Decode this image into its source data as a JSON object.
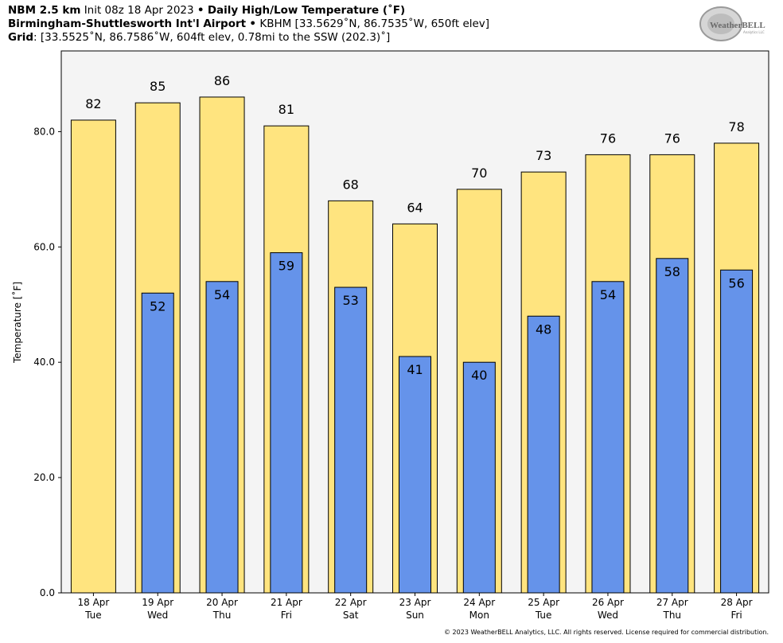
{
  "header": {
    "line1_bold": "NBM 2.5 km",
    "line1_init": "Init 08z 18 Apr 2023",
    "line1_sep": "•",
    "line1_title": "Daily High/Low Temperature (˚F)",
    "line2_bold": "Birmingham-Shuttlesworth Int'l Airport",
    "line2_sep": "•",
    "line2_rest": "KBHM [33.5629˚N, 86.7535˚W, 650ft elev]",
    "line3_bold": "Grid",
    "line3_rest": ": [33.5525˚N, 86.7586˚W, 604ft elev, 0.78mi to the SSW (202.3)˚]"
  },
  "logo": {
    "text_main": "WeatherBELL",
    "text_sub": "Analytics LLC"
  },
  "copyright": "© 2023 WeatherBELL Analytics, LLC. All rights reserved. License required for commercial distribution.",
  "chart_data": {
    "type": "bar",
    "categories": [
      {
        "date": "18 Apr",
        "day": "Tue"
      },
      {
        "date": "19 Apr",
        "day": "Wed"
      },
      {
        "date": "20 Apr",
        "day": "Thu"
      },
      {
        "date": "21 Apr",
        "day": "Fri"
      },
      {
        "date": "22 Apr",
        "day": "Sat"
      },
      {
        "date": "23 Apr",
        "day": "Sun"
      },
      {
        "date": "24 Apr",
        "day": "Mon"
      },
      {
        "date": "25 Apr",
        "day": "Tue"
      },
      {
        "date": "26 Apr",
        "day": "Wed"
      },
      {
        "date": "27 Apr",
        "day": "Thu"
      },
      {
        "date": "28 Apr",
        "day": "Fri"
      }
    ],
    "series": [
      {
        "values": [
          82,
          85,
          86,
          81,
          68,
          64,
          70,
          73,
          76,
          76,
          78
        ],
        "color": "#ffe47f"
      },
      {
        "values": [
          null,
          52,
          54,
          59,
          53,
          41,
          40,
          48,
          54,
          58,
          56
        ],
        "color": "#6593ea"
      }
    ],
    "high_labels": [
      "82",
      "85",
      "86",
      "81",
      "68",
      "64",
      "70",
      "73",
      "76",
      "76",
      "78"
    ],
    "low_labels": [
      "",
      "52",
      "54",
      "59",
      "53",
      "41",
      "40",
      "48",
      "54",
      "58",
      "56"
    ],
    "ylabel": "Temperature [˚F]",
    "ylim": [
      0,
      94
    ],
    "yticks": [
      0,
      20,
      40,
      60,
      80
    ],
    "ytick_labels": [
      "0.0",
      "20.0",
      "40.0",
      "60.0",
      "80.0"
    ],
    "plot_background": "#f4f4f4",
    "grid": false
  }
}
